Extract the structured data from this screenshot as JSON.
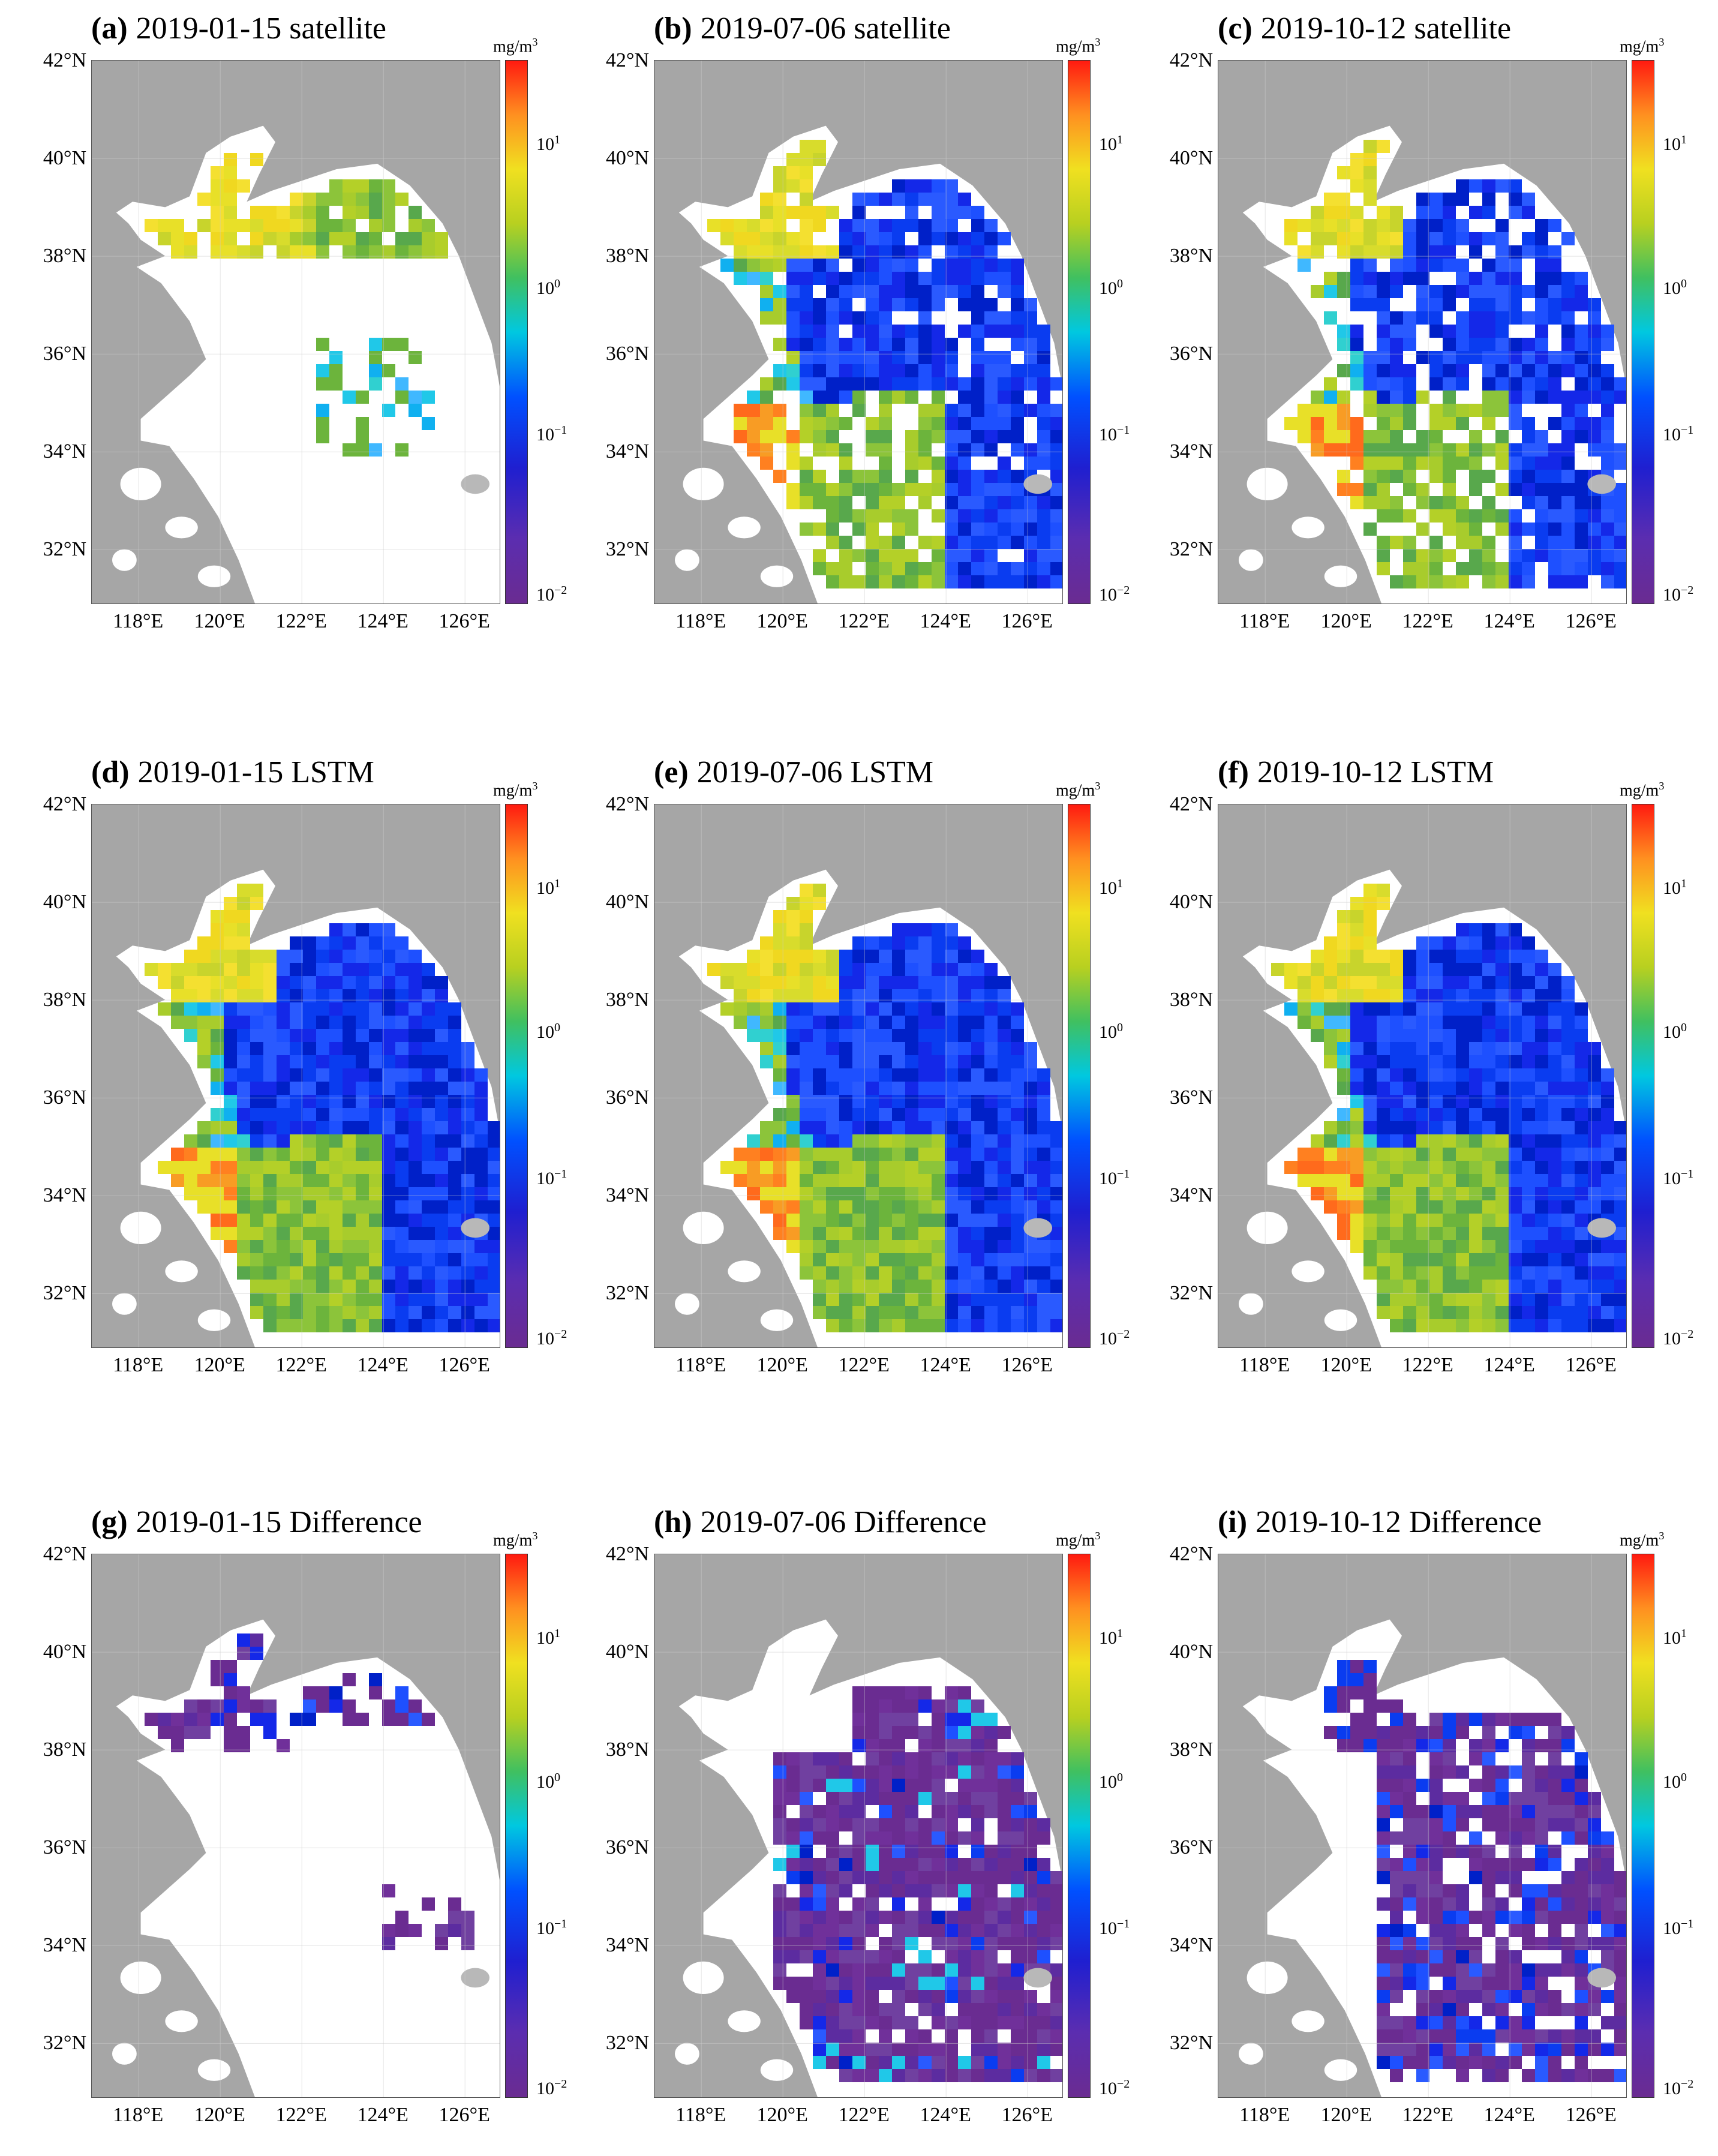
{
  "figure": {
    "lat_labels": [
      "42°N",
      "40°N",
      "38°N",
      "36°N",
      "34°N",
      "32°N"
    ],
    "lon_labels": [
      "118°E",
      "120°E",
      "122°E",
      "124°E",
      "126°E"
    ],
    "unit_base": "mg/m",
    "unit_exp": "3",
    "colorbar": {
      "ticks": [
        {
          "base": "10",
          "exp": "1"
        },
        {
          "base": "10",
          "exp": "0"
        },
        {
          "base": "10",
          "exp": "−1"
        },
        {
          "base": "10",
          "exp": "−2"
        }
      ],
      "colors": [
        "#6a2c91",
        "#1f1fd0",
        "#00c8e0",
        "#b8d020",
        "#ff9020",
        "#ff1a10"
      ],
      "scale": "log"
    },
    "colors": {
      "land": "#a6a6a6",
      "sea_nodata": "#ffffff",
      "grid": "#cccccc"
    },
    "panels": [
      {
        "letter": "(a)",
        "title": "2019-01-15 satellite"
      },
      {
        "letter": "(b)",
        "title": "2019-07-06 satellite"
      },
      {
        "letter": "(c)",
        "title": "2019-10-12 satellite"
      },
      {
        "letter": "(d)",
        "title": "2019-01-15 LSTM"
      },
      {
        "letter": "(e)",
        "title": "2019-07-06 LSTM"
      },
      {
        "letter": "(f)",
        "title": "2019-10-12 LSTM"
      },
      {
        "letter": "(g)",
        "title": "2019-01-15 Difference"
      },
      {
        "letter": "(h)",
        "title": "2019-07-06 Difference"
      },
      {
        "letter": "(i)",
        "title": "2019-10-12 Difference"
      }
    ]
  }
}
